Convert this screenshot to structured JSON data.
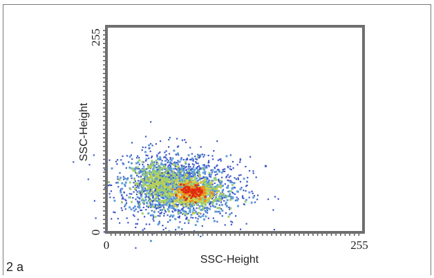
{
  "panel_label": "2 a",
  "chart_data": {
    "type": "scatter",
    "title": "",
    "xlabel": "SSC-Height",
    "ylabel": "SSC-Height",
    "xlim": [
      0,
      255
    ],
    "ylim": [
      0,
      255
    ],
    "x_tick_labels": [
      "0",
      "255"
    ],
    "y_tick_labels": [
      "0",
      "255"
    ],
    "grid": false,
    "populations": [
      {
        "center_x": 55,
        "center_y": 60,
        "spread_x": 14,
        "spread_y": 13,
        "density": "medium",
        "dominant_color": "#b7cf55"
      },
      {
        "center_x": 85,
        "center_y": 50,
        "spread_x": 16,
        "spread_y": 12,
        "density": "high",
        "dominant_color": "#e02a10"
      }
    ],
    "outlier": {
      "x": 158,
      "y": 82
    },
    "density_colors": [
      "#3a55c8",
      "#5fa0d8",
      "#9ccf70",
      "#d8d040",
      "#ee8a20",
      "#e02a10"
    ]
  }
}
